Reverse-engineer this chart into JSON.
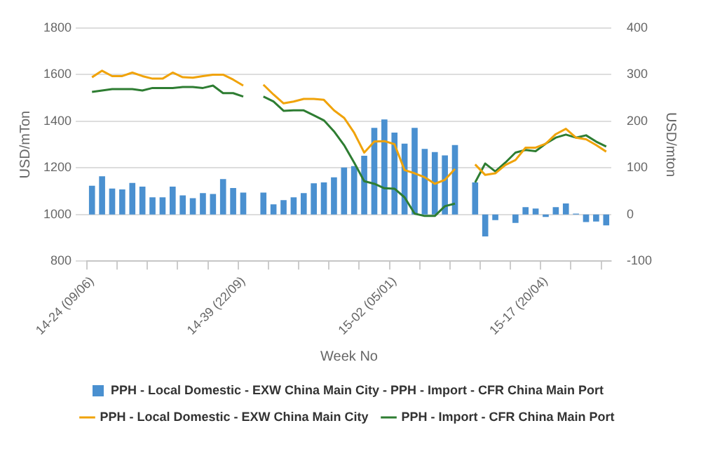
{
  "chart_data": {
    "type": "bar",
    "xlabel": "Week No",
    "ylabel": "USD/mTon",
    "y2label": "USD/mton",
    "categories": [
      "14-24 (09/06)",
      null,
      null,
      null,
      null,
      null,
      null,
      null,
      null,
      null,
      null,
      null,
      null,
      null,
      null,
      "14-39 (22/09)",
      null,
      null,
      null,
      null,
      null,
      null,
      null,
      null,
      null,
      null,
      null,
      null,
      null,
      null,
      "15-02 (05/01)",
      null,
      null,
      null,
      null,
      null,
      null,
      null,
      null,
      null,
      null,
      null,
      null,
      null,
      null,
      "15-17 (20/04)",
      null,
      null,
      null,
      null,
      null,
      null
    ],
    "series": [
      {
        "name": "PPH - Local Domestic - EXW China Main City - PPH - Import - CFR China Main Port",
        "axis": "y2",
        "color": "#4a90d0",
        "values": [
          62,
          82,
          56,
          54,
          68,
          60,
          37,
          37,
          60,
          41,
          35,
          46,
          44,
          76,
          57,
          47,
          null,
          47,
          22,
          31,
          37,
          46,
          67,
          69,
          80,
          101,
          104,
          126,
          186,
          204,
          176,
          152,
          186,
          141,
          134,
          127,
          149,
          null,
          69,
          -47,
          -12,
          null,
          -18,
          16,
          13,
          -5,
          16,
          24,
          2,
          -16,
          -15,
          -23
        ]
      },
      {
        "name": "PPH - Local Domestic - EXW China Main City",
        "type": "line",
        "color": "#f0a30a",
        "values": [
          1589,
          1617,
          1594,
          1594,
          1609,
          1594,
          1583,
          1583,
          1609,
          1589,
          1587,
          1594,
          1600,
          1600,
          1579,
          1553,
          null,
          1557,
          1515,
          1477,
          1485,
          1496,
          1496,
          1492,
          1447,
          1415,
          1351,
          1266,
          1313,
          1315,
          1302,
          1191,
          1177,
          1160,
          1132,
          1149,
          1196,
          null,
          1215,
          1170,
          1177,
          1213,
          1234,
          1287,
          1287,
          1304,
          1345,
          1368,
          1330,
          1323,
          1298,
          1270
        ]
      },
      {
        "name": "PPH - Import - CFR China Main Port",
        "type": "line",
        "color": "#2e7d32",
        "values": [
          1526,
          1532,
          1538,
          1538,
          1538,
          1532,
          1543,
          1543,
          1543,
          1547,
          1547,
          1543,
          1553,
          1521,
          1521,
          1506,
          null,
          1506,
          1485,
          1445,
          1447,
          1447,
          1426,
          1404,
          1357,
          1298,
          1223,
          1143,
          1132,
          1113,
          1111,
          1074,
          1004,
          994,
          994,
          1036,
          1047,
          null,
          1138,
          1219,
          1185,
          1223,
          1266,
          1277,
          1272,
          1304,
          1330,
          1343,
          1330,
          1340,
          1313,
          1292
        ]
      }
    ],
    "ylim": [
      800,
      1800
    ],
    "yticks": [
      800,
      1000,
      1200,
      1400,
      1600,
      1800
    ],
    "y2lim": [
      -100,
      400
    ],
    "y2ticks": [
      -100,
      0,
      100,
      200,
      300,
      400
    ],
    "grid": "y",
    "legend": "bottom",
    "marker": "none"
  }
}
